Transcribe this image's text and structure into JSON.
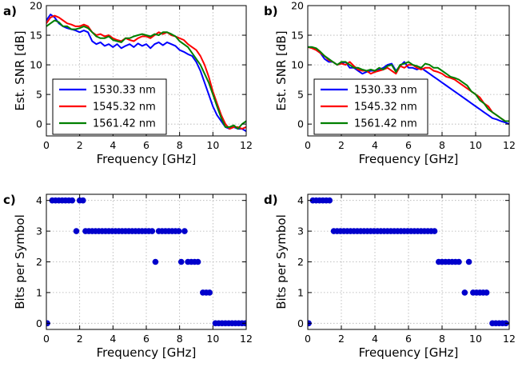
{
  "chart_data": [
    {
      "panel_label": "a)",
      "type": "line",
      "xlabel": "Frequency [GHz]",
      "ylabel": "Est. SNR [dB]",
      "xlim": [
        0,
        12
      ],
      "ylim": [
        -2,
        20
      ],
      "xticks": [
        0,
        2,
        4,
        6,
        8,
        10,
        12
      ],
      "yticks": [
        0,
        5,
        10,
        15,
        20
      ],
      "grid": true,
      "legend": "bottom-left",
      "x": [
        0,
        0.25,
        0.5,
        0.75,
        1,
        1.25,
        1.5,
        1.75,
        2,
        2.25,
        2.5,
        2.75,
        3,
        3.25,
        3.5,
        3.75,
        4,
        4.25,
        4.5,
        4.75,
        5,
        5.25,
        5.5,
        5.75,
        6,
        6.25,
        6.5,
        6.75,
        7,
        7.25,
        7.5,
        7.75,
        8,
        8.25,
        8.5,
        8.75,
        9,
        9.25,
        9.5,
        9.75,
        10,
        10.25,
        10.5,
        10.75,
        11,
        11.25,
        11.5,
        11.75,
        12
      ],
      "series": [
        {
          "name": "1530.33 nm",
          "color": "#0000ff",
          "values": [
            17.5,
            18.5,
            18.0,
            17.0,
            16.5,
            16.2,
            16.0,
            15.8,
            15.5,
            15.8,
            15.5,
            14.0,
            13.5,
            13.8,
            13.2,
            13.5,
            13.0,
            13.5,
            12.8,
            13.2,
            13.5,
            13.0,
            13.6,
            13.2,
            13.5,
            12.8,
            13.5,
            13.8,
            13.3,
            13.8,
            13.5,
            13.2,
            12.5,
            12.2,
            11.8,
            11.5,
            10.5,
            9.0,
            7.0,
            5.0,
            3.0,
            1.5,
            0.5,
            -0.5,
            -0.8,
            -0.5,
            -0.8,
            -0.8,
            -1.2
          ]
        },
        {
          "name": "1545.32 nm",
          "color": "#ff0000",
          "values": [
            17.0,
            18.0,
            18.3,
            18.0,
            17.5,
            17.0,
            16.8,
            16.5,
            16.5,
            16.8,
            16.5,
            15.5,
            15.0,
            15.2,
            14.8,
            15.0,
            14.5,
            14.2,
            14.0,
            14.5,
            14.2,
            14.0,
            14.5,
            14.8,
            14.8,
            14.5,
            15.0,
            15.5,
            15.2,
            15.5,
            15.0,
            14.8,
            14.5,
            14.2,
            13.5,
            13.0,
            12.5,
            11.5,
            10.0,
            8.0,
            5.5,
            3.5,
            1.5,
            0.0,
            -0.8,
            -0.5,
            -0.5,
            -0.8,
            -0.5
          ]
        },
        {
          "name": "1561.42 nm",
          "color": "#008000",
          "values": [
            16.5,
            17.0,
            17.5,
            17.2,
            16.5,
            16.5,
            16.0,
            16.0,
            16.2,
            16.5,
            16.2,
            15.5,
            14.8,
            14.5,
            14.5,
            14.8,
            14.2,
            14.0,
            13.8,
            14.5,
            14.5,
            14.8,
            15.0,
            15.2,
            15.0,
            14.8,
            15.2,
            15.0,
            15.5,
            15.5,
            15.2,
            14.8,
            14.0,
            13.5,
            13.0,
            12.0,
            11.0,
            10.0,
            8.5,
            7.0,
            5.0,
            3.0,
            1.0,
            -0.5,
            -0.5,
            -0.2,
            -0.8,
            0.0,
            0.5
          ]
        }
      ]
    },
    {
      "panel_label": "b)",
      "type": "line",
      "xlabel": "Frequency [GHz]",
      "ylabel": "Est. SNR [dB]",
      "xlim": [
        0,
        12
      ],
      "ylim": [
        -2,
        20
      ],
      "xticks": [
        0,
        2,
        4,
        6,
        8,
        10,
        12
      ],
      "yticks": [
        0,
        5,
        10,
        15,
        20
      ],
      "grid": true,
      "legend": "bottom-left",
      "x": [
        0,
        0.25,
        0.5,
        0.75,
        1,
        1.25,
        1.5,
        1.75,
        2,
        2.25,
        2.5,
        2.75,
        3,
        3.25,
        3.5,
        3.75,
        4,
        4.25,
        4.5,
        4.75,
        5,
        5.25,
        5.5,
        5.75,
        6,
        6.25,
        6.5,
        6.75,
        7,
        7.25,
        7.5,
        7.75,
        8,
        8.25,
        8.5,
        8.75,
        9,
        9.25,
        9.5,
        9.75,
        10,
        10.25,
        10.5,
        10.75,
        11,
        11.25,
        11.5,
        11.75,
        12
      ],
      "series": [
        {
          "name": "1530.33 nm",
          "color": "#0000ff",
          "values": [
            13.0,
            13.0,
            12.5,
            12.0,
            11.0,
            10.5,
            10.5,
            10.0,
            10.2,
            10.5,
            9.5,
            9.5,
            9.0,
            8.5,
            8.8,
            9.0,
            9.0,
            9.2,
            9.5,
            10.0,
            10.2,
            9.0,
            9.8,
            10.5,
            9.5,
            9.5,
            9.2,
            9.5,
            9.0,
            8.5,
            8.0,
            7.5,
            7.0,
            6.5,
            6.0,
            5.5,
            5.0,
            4.5,
            4.0,
            3.5,
            3.0,
            2.5,
            2.0,
            1.5,
            1.0,
            0.8,
            0.5,
            0.3,
            0.0
          ]
        },
        {
          "name": "1545.32 nm",
          "color": "#ff0000",
          "values": [
            13.0,
            12.8,
            12.5,
            12.0,
            11.5,
            10.8,
            10.5,
            10.0,
            10.2,
            10.0,
            10.5,
            9.8,
            9.2,
            9.0,
            9.0,
            8.5,
            8.8,
            9.0,
            9.2,
            9.5,
            9.0,
            8.5,
            9.8,
            9.5,
            10.0,
            10.0,
            9.5,
            9.2,
            9.5,
            9.5,
            9.0,
            8.8,
            8.5,
            8.0,
            7.8,
            7.5,
            7.0,
            6.5,
            6.0,
            5.5,
            5.0,
            4.5,
            3.5,
            3.0,
            2.0,
            1.5,
            1.0,
            0.5,
            0.5
          ]
        },
        {
          "name": "1561.42 nm",
          "color": "#008000",
          "values": [
            13.0,
            13.0,
            12.8,
            12.2,
            11.5,
            11.0,
            10.5,
            10.0,
            10.5,
            10.5,
            10.0,
            9.5,
            9.5,
            9.2,
            9.0,
            9.2,
            9.0,
            9.5,
            9.2,
            9.8,
            10.0,
            8.8,
            10.0,
            10.2,
            10.5,
            10.0,
            9.8,
            9.5,
            10.2,
            10.0,
            9.5,
            9.5,
            9.0,
            8.5,
            8.0,
            7.8,
            7.5,
            7.0,
            6.5,
            5.5,
            5.0,
            4.0,
            3.5,
            2.5,
            2.0,
            1.5,
            1.0,
            0.5,
            0.5
          ]
        }
      ]
    },
    {
      "panel_label": "c)",
      "type": "scatter",
      "xlabel": "Frequency [GHz]",
      "ylabel": "Bits per Symbol",
      "xlim": [
        0,
        12
      ],
      "ylim": [
        -0.2,
        4.2
      ],
      "xticks": [
        0,
        2,
        4,
        6,
        8,
        10,
        12
      ],
      "yticks": [
        0,
        1,
        2,
        3,
        4
      ],
      "grid": true,
      "color": "#0000cc",
      "points": [
        [
          0.05,
          0
        ],
        [
          0.35,
          4
        ],
        [
          0.55,
          4
        ],
        [
          0.75,
          4
        ],
        [
          0.95,
          4
        ],
        [
          1.15,
          4
        ],
        [
          1.35,
          4
        ],
        [
          1.55,
          4
        ],
        [
          2.0,
          4
        ],
        [
          2.2,
          4
        ],
        [
          1.8,
          3
        ],
        [
          2.35,
          3
        ],
        [
          2.55,
          3
        ],
        [
          2.75,
          3
        ],
        [
          2.95,
          3
        ],
        [
          3.15,
          3
        ],
        [
          3.35,
          3
        ],
        [
          3.55,
          3
        ],
        [
          3.75,
          3
        ],
        [
          3.95,
          3
        ],
        [
          4.15,
          3
        ],
        [
          4.35,
          3
        ],
        [
          4.55,
          3
        ],
        [
          4.75,
          3
        ],
        [
          4.95,
          3
        ],
        [
          5.15,
          3
        ],
        [
          5.35,
          3
        ],
        [
          5.55,
          3
        ],
        [
          5.75,
          3
        ],
        [
          5.95,
          3
        ],
        [
          6.15,
          3
        ],
        [
          6.35,
          3
        ],
        [
          6.75,
          3
        ],
        [
          6.95,
          3
        ],
        [
          7.15,
          3
        ],
        [
          7.35,
          3
        ],
        [
          7.55,
          3
        ],
        [
          7.75,
          3
        ],
        [
          7.95,
          3
        ],
        [
          8.3,
          3
        ],
        [
          6.55,
          2
        ],
        [
          8.1,
          2
        ],
        [
          8.5,
          2
        ],
        [
          8.7,
          2
        ],
        [
          8.9,
          2
        ],
        [
          9.1,
          2
        ],
        [
          9.4,
          1
        ],
        [
          9.6,
          1
        ],
        [
          9.8,
          1
        ],
        [
          10.15,
          0
        ],
        [
          10.35,
          0
        ],
        [
          10.55,
          0
        ],
        [
          10.75,
          0
        ],
        [
          10.95,
          0
        ],
        [
          11.15,
          0
        ],
        [
          11.35,
          0
        ],
        [
          11.55,
          0
        ],
        [
          11.75,
          0
        ],
        [
          11.95,
          0
        ]
      ]
    },
    {
      "panel_label": "d)",
      "type": "scatter",
      "xlabel": "Frequency [GHz]",
      "ylabel": "Bits per Symbol",
      "xlim": [
        0,
        12
      ],
      "ylim": [
        -0.2,
        4.2
      ],
      "xticks": [
        0,
        2,
        4,
        6,
        8,
        10,
        12
      ],
      "yticks": [
        0,
        1,
        2,
        3,
        4
      ],
      "grid": true,
      "color": "#0000cc",
      "points": [
        [
          0.05,
          0
        ],
        [
          0.3,
          4
        ],
        [
          0.5,
          4
        ],
        [
          0.7,
          4
        ],
        [
          0.9,
          4
        ],
        [
          1.1,
          4
        ],
        [
          1.3,
          4
        ],
        [
          1.55,
          3
        ],
        [
          1.75,
          3
        ],
        [
          1.95,
          3
        ],
        [
          2.15,
          3
        ],
        [
          2.35,
          3
        ],
        [
          2.55,
          3
        ],
        [
          2.75,
          3
        ],
        [
          2.95,
          3
        ],
        [
          3.15,
          3
        ],
        [
          3.35,
          3
        ],
        [
          3.55,
          3
        ],
        [
          3.75,
          3
        ],
        [
          3.95,
          3
        ],
        [
          4.15,
          3
        ],
        [
          4.35,
          3
        ],
        [
          4.55,
          3
        ],
        [
          4.75,
          3
        ],
        [
          4.95,
          3
        ],
        [
          5.15,
          3
        ],
        [
          5.35,
          3
        ],
        [
          5.55,
          3
        ],
        [
          5.75,
          3
        ],
        [
          5.95,
          3
        ],
        [
          6.15,
          3
        ],
        [
          6.35,
          3
        ],
        [
          6.55,
          3
        ],
        [
          6.75,
          3
        ],
        [
          6.95,
          3
        ],
        [
          7.15,
          3
        ],
        [
          7.35,
          3
        ],
        [
          7.55,
          3
        ],
        [
          7.8,
          2
        ],
        [
          8.0,
          2
        ],
        [
          8.2,
          2
        ],
        [
          8.4,
          2
        ],
        [
          8.6,
          2
        ],
        [
          8.8,
          2
        ],
        [
          9.0,
          2
        ],
        [
          9.6,
          2
        ],
        [
          9.35,
          1
        ],
        [
          9.85,
          1
        ],
        [
          10.05,
          1
        ],
        [
          10.25,
          1
        ],
        [
          10.45,
          1
        ],
        [
          10.65,
          1
        ],
        [
          11.0,
          0
        ],
        [
          11.2,
          0
        ],
        [
          11.4,
          0
        ],
        [
          11.6,
          0
        ],
        [
          11.8,
          0
        ]
      ]
    }
  ]
}
